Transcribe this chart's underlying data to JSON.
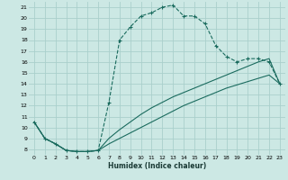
{
  "xlabel": "Humidex (Indice chaleur)",
  "background_color": "#cce8e4",
  "grid_color": "#aacfcc",
  "line_color": "#1a6b5e",
  "xlim": [
    -0.5,
    23.5
  ],
  "ylim": [
    7.5,
    21.5
  ],
  "xticks": [
    0,
    1,
    2,
    3,
    4,
    5,
    6,
    7,
    8,
    9,
    10,
    11,
    12,
    13,
    14,
    15,
    16,
    17,
    18,
    19,
    20,
    21,
    22,
    23
  ],
  "yticks": [
    8,
    9,
    10,
    11,
    12,
    13,
    14,
    15,
    16,
    17,
    18,
    19,
    20,
    21
  ],
  "series1_x": [
    0,
    1,
    2,
    3,
    4,
    5,
    6,
    7,
    8,
    9,
    10,
    11,
    12,
    13,
    14,
    15,
    16,
    17,
    18,
    19,
    20,
    21,
    22,
    23
  ],
  "series1_y": [
    10.5,
    9.0,
    8.5,
    7.9,
    7.8,
    7.8,
    7.9,
    12.3,
    18.0,
    19.2,
    20.2,
    20.5,
    21.0,
    21.2,
    20.2,
    20.2,
    19.5,
    17.5,
    16.5,
    16.0,
    16.3,
    16.3,
    16.0,
    14.0
  ],
  "series2_x": [
    0,
    1,
    2,
    3,
    4,
    5,
    6,
    7,
    8,
    9,
    10,
    11,
    12,
    13,
    14,
    15,
    16,
    17,
    18,
    19,
    20,
    21,
    22,
    23
  ],
  "series2_y": [
    10.5,
    9.0,
    8.5,
    7.9,
    7.8,
    7.8,
    7.9,
    9.0,
    9.8,
    10.5,
    11.2,
    11.8,
    12.3,
    12.8,
    13.2,
    13.6,
    14.0,
    14.4,
    14.8,
    15.2,
    15.6,
    16.0,
    16.3,
    14.0
  ],
  "series3_x": [
    0,
    1,
    2,
    3,
    4,
    5,
    6,
    7,
    8,
    9,
    10,
    11,
    12,
    13,
    14,
    15,
    16,
    17,
    18,
    19,
    20,
    21,
    22,
    23
  ],
  "series3_y": [
    10.5,
    9.0,
    8.5,
    7.9,
    7.8,
    7.8,
    7.9,
    8.5,
    9.0,
    9.5,
    10.0,
    10.5,
    11.0,
    11.5,
    12.0,
    12.4,
    12.8,
    13.2,
    13.6,
    13.9,
    14.2,
    14.5,
    14.8,
    14.0
  ]
}
